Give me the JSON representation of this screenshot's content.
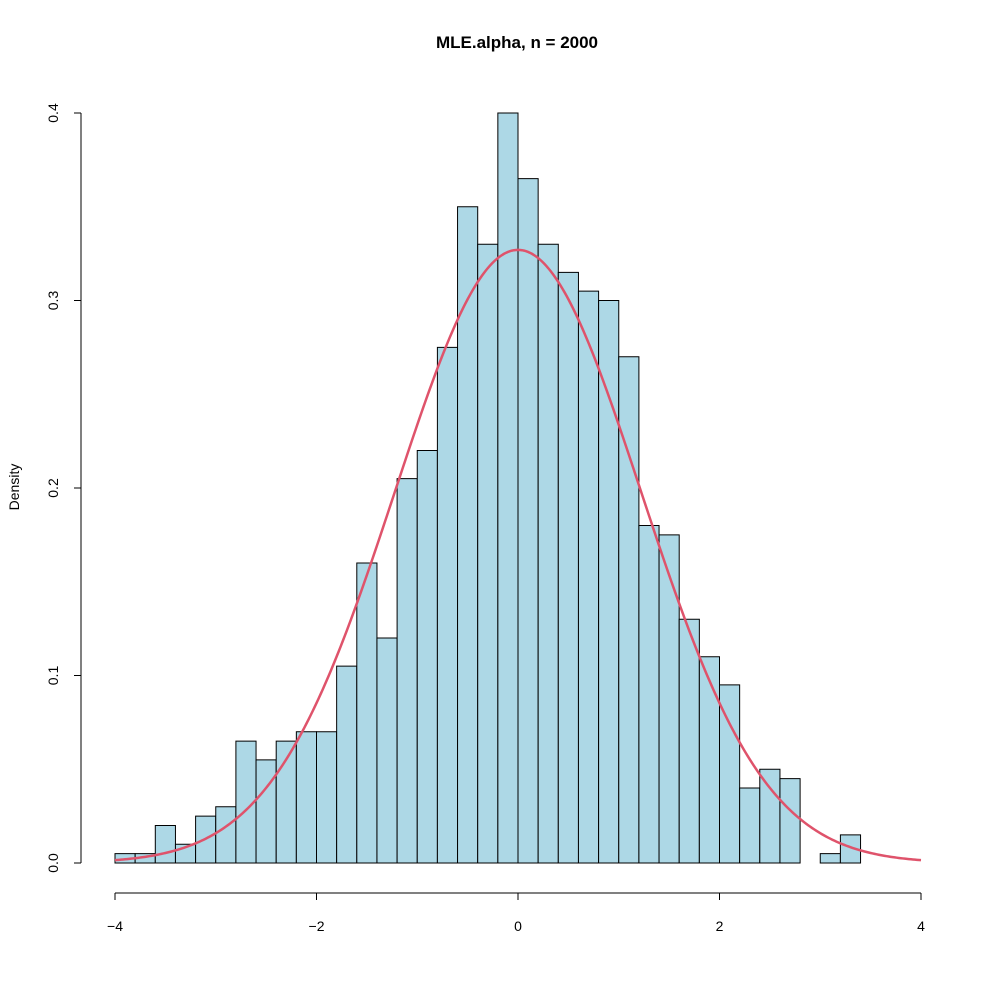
{
  "chart_data": {
    "type": "histogram",
    "title": "MLE.alpha, n = 2000",
    "xlabel": "",
    "ylabel": "Density",
    "xlim": [
      -4,
      4
    ],
    "ylim": [
      0,
      0.4
    ],
    "x_ticks": [
      -4,
      -2,
      0,
      2,
      4
    ],
    "x_tick_labels": [
      "−4",
      "−2",
      "0",
      "2",
      "4"
    ],
    "y_ticks": [
      0,
      0.1,
      0.2,
      0.3,
      0.4
    ],
    "y_tick_labels": [
      "0.0",
      "0.1",
      "0.2",
      "0.3",
      "0.4"
    ],
    "bin_width": 0.2,
    "bins": [
      {
        "x0": -4.0,
        "x1": -3.8,
        "density": 0.005
      },
      {
        "x0": -3.8,
        "x1": -3.6,
        "density": 0.005
      },
      {
        "x0": -3.6,
        "x1": -3.4,
        "density": 0.02
      },
      {
        "x0": -3.4,
        "x1": -3.2,
        "density": 0.01
      },
      {
        "x0": -3.2,
        "x1": -3.0,
        "density": 0.025
      },
      {
        "x0": -3.0,
        "x1": -2.8,
        "density": 0.03
      },
      {
        "x0": -2.8,
        "x1": -2.6,
        "density": 0.065
      },
      {
        "x0": -2.6,
        "x1": -2.4,
        "density": 0.055
      },
      {
        "x0": -2.4,
        "x1": -2.2,
        "density": 0.065
      },
      {
        "x0": -2.2,
        "x1": -2.0,
        "density": 0.07
      },
      {
        "x0": -2.0,
        "x1": -1.8,
        "density": 0.07
      },
      {
        "x0": -1.8,
        "x1": -1.6,
        "density": 0.105
      },
      {
        "x0": -1.6,
        "x1": -1.4,
        "density": 0.16
      },
      {
        "x0": -1.4,
        "x1": -1.2,
        "density": 0.12
      },
      {
        "x0": -1.2,
        "x1": -1.0,
        "density": 0.205
      },
      {
        "x0": -1.0,
        "x1": -0.8,
        "density": 0.22
      },
      {
        "x0": -0.8,
        "x1": -0.6,
        "density": 0.275
      },
      {
        "x0": -0.6,
        "x1": -0.4,
        "density": 0.35
      },
      {
        "x0": -0.4,
        "x1": -0.2,
        "density": 0.33
      },
      {
        "x0": -0.2,
        "x1": 0.0,
        "density": 0.4
      },
      {
        "x0": 0.0,
        "x1": 0.2,
        "density": 0.365
      },
      {
        "x0": 0.2,
        "x1": 0.4,
        "density": 0.33
      },
      {
        "x0": 0.4,
        "x1": 0.6,
        "density": 0.315
      },
      {
        "x0": 0.6,
        "x1": 0.8,
        "density": 0.305
      },
      {
        "x0": 0.8,
        "x1": 1.0,
        "density": 0.3
      },
      {
        "x0": 1.0,
        "x1": 1.2,
        "density": 0.27
      },
      {
        "x0": 1.2,
        "x1": 1.4,
        "density": 0.18
      },
      {
        "x0": 1.4,
        "x1": 1.6,
        "density": 0.175
      },
      {
        "x0": 1.6,
        "x1": 1.8,
        "density": 0.13
      },
      {
        "x0": 1.8,
        "x1": 2.0,
        "density": 0.11
      },
      {
        "x0": 2.0,
        "x1": 2.2,
        "density": 0.095
      },
      {
        "x0": 2.2,
        "x1": 2.4,
        "density": 0.04
      },
      {
        "x0": 2.4,
        "x1": 2.6,
        "density": 0.05
      },
      {
        "x0": 2.6,
        "x1": 2.8,
        "density": 0.045
      },
      {
        "x0": 2.8,
        "x1": 3.0,
        "density": 0.0
      },
      {
        "x0": 3.0,
        "x1": 3.2,
        "density": 0.005
      },
      {
        "x0": 3.2,
        "x1": 3.4,
        "density": 0.015
      }
    ],
    "curve": {
      "type": "normal-density",
      "mean": 0,
      "sd": 1.22,
      "x_range": [
        -4,
        4
      ]
    },
    "colors": {
      "bar_fill": "#add8e6",
      "bar_stroke": "#000000",
      "curve": "#df536b",
      "axis": "#000000"
    }
  }
}
